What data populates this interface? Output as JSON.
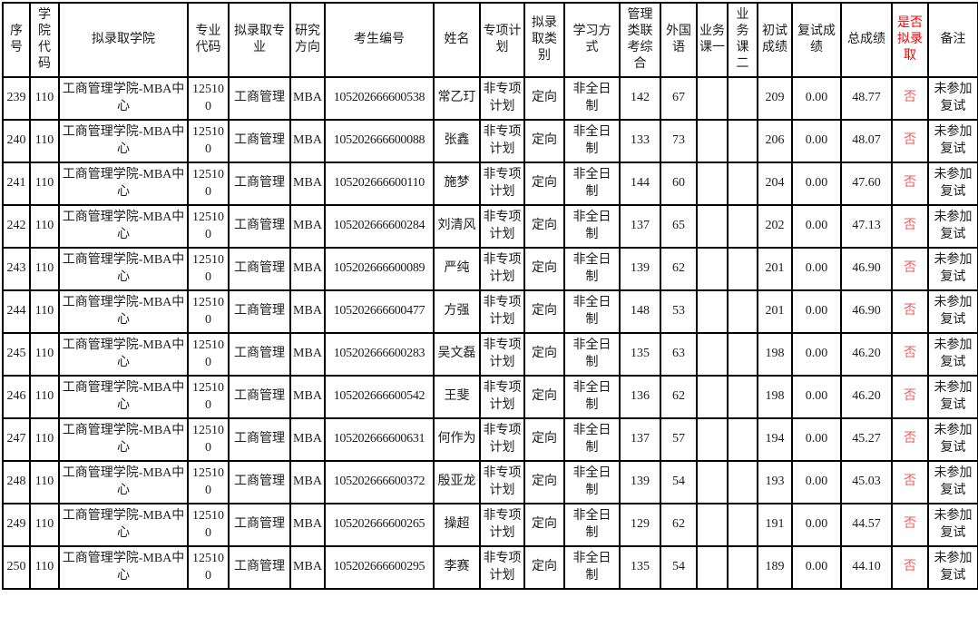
{
  "colors": {
    "header_highlight_red": "#ff0000",
    "no_value_red": "#f25c5c",
    "grid_black": "#000000",
    "text": "#1c1c1c"
  },
  "table": {
    "columns": [
      {
        "key": "seq",
        "label": "序号"
      },
      {
        "key": "college_code",
        "label": "学院代码"
      },
      {
        "key": "college",
        "label": "拟录取学院"
      },
      {
        "key": "major_code",
        "label": "专业代码"
      },
      {
        "key": "major",
        "label": "拟录取专业"
      },
      {
        "key": "direction",
        "label": "研究方向"
      },
      {
        "key": "candidate_no",
        "label": "考生编号"
      },
      {
        "key": "name",
        "label": "姓名"
      },
      {
        "key": "special_plan",
        "label": "专项计划"
      },
      {
        "key": "admit_category",
        "label": "拟录取类别"
      },
      {
        "key": "study_mode",
        "label": "学习方式"
      },
      {
        "key": "mgmt_exam",
        "label": "管理类联考综合"
      },
      {
        "key": "foreign_lang",
        "label": "外国语"
      },
      {
        "key": "course1",
        "label": "业务课一"
      },
      {
        "key": "course2",
        "label": "业务课二"
      },
      {
        "key": "initial_score",
        "label": "初试成绩"
      },
      {
        "key": "retest_score",
        "label": "复试成绩"
      },
      {
        "key": "total_score",
        "label": "总成绩"
      },
      {
        "key": "admitted",
        "label": "是否拟录取",
        "highlight": true
      },
      {
        "key": "remark",
        "label": "备注"
      }
    ],
    "rows": [
      {
        "seq": "239",
        "college_code": "110",
        "college": "工商管理学院-MBA中心",
        "major_code": "125100",
        "major": "工商管理",
        "direction": "MBA",
        "candidate_no": "105202666600538",
        "name": "常乙玎",
        "special_plan": "非专项计划",
        "admit_category": "定向",
        "study_mode": "非全日制",
        "mgmt_exam": "142",
        "foreign_lang": "67",
        "course1": "",
        "course2": "",
        "initial_score": "209",
        "retest_score": "0.00",
        "total_score": "48.77",
        "admitted": "否",
        "remark": "未参加复试"
      },
      {
        "seq": "240",
        "college_code": "110",
        "college": "工商管理学院-MBA中心",
        "major_code": "125100",
        "major": "工商管理",
        "direction": "MBA",
        "candidate_no": "105202666600088",
        "name": "张鑫",
        "special_plan": "非专项计划",
        "admit_category": "定向",
        "study_mode": "非全日制",
        "mgmt_exam": "133",
        "foreign_lang": "73",
        "course1": "",
        "course2": "",
        "initial_score": "206",
        "retest_score": "0.00",
        "total_score": "48.07",
        "admitted": "否",
        "remark": "未参加复试"
      },
      {
        "seq": "241",
        "college_code": "110",
        "college": "工商管理学院-MBA中心",
        "major_code": "125100",
        "major": "工商管理",
        "direction": "MBA",
        "candidate_no": "105202666600110",
        "name": "施梦",
        "special_plan": "非专项计划",
        "admit_category": "定向",
        "study_mode": "非全日制",
        "mgmt_exam": "144",
        "foreign_lang": "60",
        "course1": "",
        "course2": "",
        "initial_score": "204",
        "retest_score": "0.00",
        "total_score": "47.60",
        "admitted": "否",
        "remark": "未参加复试"
      },
      {
        "seq": "242",
        "college_code": "110",
        "college": "工商管理学院-MBA中心",
        "major_code": "125100",
        "major": "工商管理",
        "direction": "MBA",
        "candidate_no": "105202666600284",
        "name": "刘清风",
        "special_plan": "非专项计划",
        "admit_category": "定向",
        "study_mode": "非全日制",
        "mgmt_exam": "137",
        "foreign_lang": "65",
        "course1": "",
        "course2": "",
        "initial_score": "202",
        "retest_score": "0.00",
        "total_score": "47.13",
        "admitted": "否",
        "remark": "未参加复试"
      },
      {
        "seq": "243",
        "college_code": "110",
        "college": "工商管理学院-MBA中心",
        "major_code": "125100",
        "major": "工商管理",
        "direction": "MBA",
        "candidate_no": "105202666600089",
        "name": "严纯",
        "special_plan": "非专项计划",
        "admit_category": "定向",
        "study_mode": "非全日制",
        "mgmt_exam": "139",
        "foreign_lang": "62",
        "course1": "",
        "course2": "",
        "initial_score": "201",
        "retest_score": "0.00",
        "total_score": "46.90",
        "admitted": "否",
        "remark": "未参加复试"
      },
      {
        "seq": "244",
        "college_code": "110",
        "college": "工商管理学院-MBA中心",
        "major_code": "125100",
        "major": "工商管理",
        "direction": "MBA",
        "candidate_no": "105202666600477",
        "name": "方强",
        "special_plan": "非专项计划",
        "admit_category": "定向",
        "study_mode": "非全日制",
        "mgmt_exam": "148",
        "foreign_lang": "53",
        "course1": "",
        "course2": "",
        "initial_score": "201",
        "retest_score": "0.00",
        "total_score": "46.90",
        "admitted": "否",
        "remark": "未参加复试"
      },
      {
        "seq": "245",
        "college_code": "110",
        "college": "工商管理学院-MBA中心",
        "major_code": "125100",
        "major": "工商管理",
        "direction": "MBA",
        "candidate_no": "105202666600283",
        "name": "吴文磊",
        "special_plan": "非专项计划",
        "admit_category": "定向",
        "study_mode": "非全日制",
        "mgmt_exam": "135",
        "foreign_lang": "63",
        "course1": "",
        "course2": "",
        "initial_score": "198",
        "retest_score": "0.00",
        "total_score": "46.20",
        "admitted": "否",
        "remark": "未参加复试"
      },
      {
        "seq": "246",
        "college_code": "110",
        "college": "工商管理学院-MBA中心",
        "major_code": "125100",
        "major": "工商管理",
        "direction": "MBA",
        "candidate_no": "105202666600542",
        "name": "王斐",
        "special_plan": "非专项计划",
        "admit_category": "定向",
        "study_mode": "非全日制",
        "mgmt_exam": "136",
        "foreign_lang": "62",
        "course1": "",
        "course2": "",
        "initial_score": "198",
        "retest_score": "0.00",
        "total_score": "46.20",
        "admitted": "否",
        "remark": "未参加复试"
      },
      {
        "seq": "247",
        "college_code": "110",
        "college": "工商管理学院-MBA中心",
        "major_code": "125100",
        "major": "工商管理",
        "direction": "MBA",
        "candidate_no": "105202666600631",
        "name": "何作为",
        "special_plan": "非专项计划",
        "admit_category": "定向",
        "study_mode": "非全日制",
        "mgmt_exam": "137",
        "foreign_lang": "57",
        "course1": "",
        "course2": "",
        "initial_score": "194",
        "retest_score": "0.00",
        "total_score": "45.27",
        "admitted": "否",
        "remark": "未参加复试"
      },
      {
        "seq": "248",
        "college_code": "110",
        "college": "工商管理学院-MBA中心",
        "major_code": "125100",
        "major": "工商管理",
        "direction": "MBA",
        "candidate_no": "105202666600372",
        "name": "殷亚龙",
        "special_plan": "非专项计划",
        "admit_category": "定向",
        "study_mode": "非全日制",
        "mgmt_exam": "139",
        "foreign_lang": "54",
        "course1": "",
        "course2": "",
        "initial_score": "193",
        "retest_score": "0.00",
        "total_score": "45.03",
        "admitted": "否",
        "remark": "未参加复试"
      },
      {
        "seq": "249",
        "college_code": "110",
        "college": "工商管理学院-MBA中心",
        "major_code": "125100",
        "major": "工商管理",
        "direction": "MBA",
        "candidate_no": "105202666600265",
        "name": "操超",
        "special_plan": "非专项计划",
        "admit_category": "定向",
        "study_mode": "非全日制",
        "mgmt_exam": "129",
        "foreign_lang": "62",
        "course1": "",
        "course2": "",
        "initial_score": "191",
        "retest_score": "0.00",
        "total_score": "44.57",
        "admitted": "否",
        "remark": "未参加复试"
      },
      {
        "seq": "250",
        "college_code": "110",
        "college": "工商管理学院-MBA中心",
        "major_code": "125100",
        "major": "工商管理",
        "direction": "MBA",
        "candidate_no": "105202666600295",
        "name": "李赛",
        "special_plan": "非专项计划",
        "admit_category": "定向",
        "study_mode": "非全日制",
        "mgmt_exam": "135",
        "foreign_lang": "54",
        "course1": "",
        "course2": "",
        "initial_score": "189",
        "retest_score": "0.00",
        "total_score": "44.10",
        "admitted": "否",
        "remark": "未参加复试"
      }
    ]
  }
}
